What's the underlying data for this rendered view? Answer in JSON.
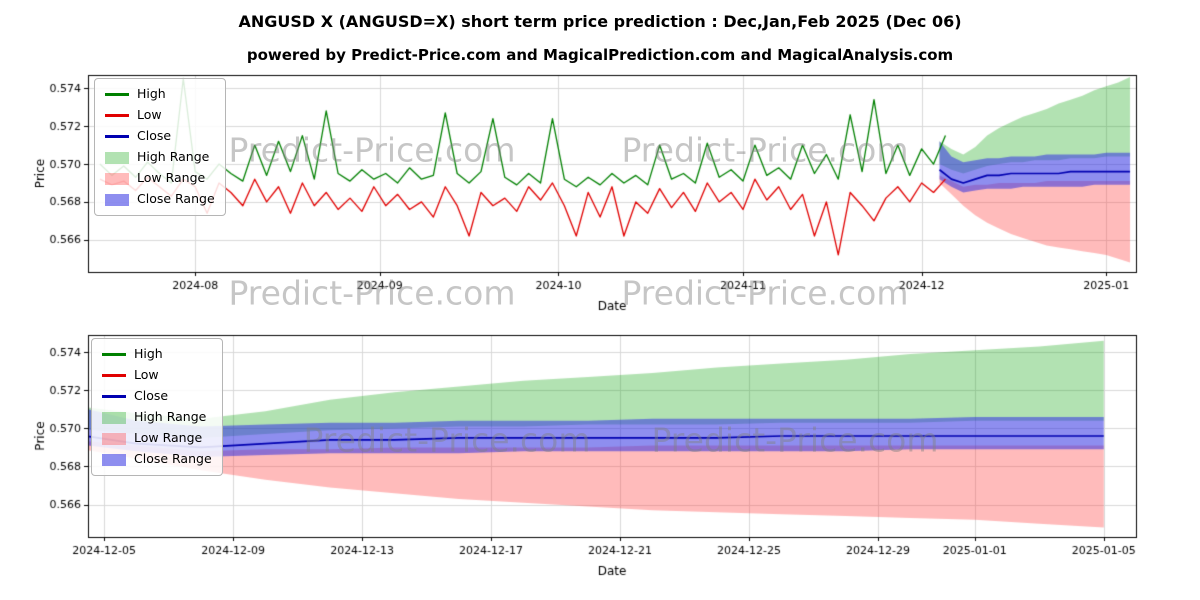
{
  "page": {
    "title": "ANGUSD X (ANGUSD=X) short term price prediction : Dec,Jan,Feb 2025 (Dec 06)",
    "subtitle": "powered by Predict-Price.com and MagicalPrediction.com and MagicalAnalysis.com"
  },
  "watermark": "Predict-Price.com",
  "colors": {
    "high": "#008000",
    "low": "#e00000",
    "close": "#0000b0",
    "high_band": "rgba(0,160,0,0.30)",
    "low_band": "rgba(255,60,60,0.35)",
    "close_band": "rgba(50,50,225,0.55)",
    "grid": "#d8d8d8",
    "frame": "#000000"
  },
  "legend_items": [
    {
      "label": "High",
      "kind": "line",
      "swatch": "#008000"
    },
    {
      "label": "Low",
      "kind": "line",
      "swatch": "#e00000"
    },
    {
      "label": "Close",
      "kind": "line",
      "swatch": "#0000b0"
    },
    {
      "label": "High Range",
      "kind": "band",
      "swatch": "rgba(0,160,0,0.30)"
    },
    {
      "label": "Low Range",
      "kind": "band",
      "swatch": "rgba(255,60,60,0.35)"
    },
    {
      "label": "Close Range",
      "kind": "band",
      "swatch": "rgba(50,50,225,0.55)"
    }
  ],
  "chart_data": [
    {
      "name": "history-with-forecast",
      "type": "line",
      "title": "",
      "xlabel": "Date",
      "ylabel": "Price",
      "grid": true,
      "legend_position": "upper left",
      "legend": [
        "High",
        "Low",
        "Close",
        "High Range",
        "Low Range",
        "Close Range"
      ],
      "xlim": [
        -8,
        168
      ],
      "ylim": [
        0.5643,
        0.5747
      ],
      "xticks": [
        10,
        41,
        71,
        102,
        132,
        163
      ],
      "xtick_labels": [
        "2024-08",
        "2024-09",
        "2024-10",
        "2024-11",
        "2024-12",
        "2025-01"
      ],
      "yticks": [
        0.566,
        0.568,
        0.57,
        0.572,
        0.574
      ],
      "ytick_labels": [
        "0.566",
        "0.568",
        "0.570",
        "0.572",
        "0.574"
      ],
      "prediction_offset": 135,
      "history": {
        "x_start": -6,
        "x_step": 2,
        "high": [
          0.57,
          0.5694,
          0.5699,
          0.5693,
          0.5701,
          0.5695,
          0.569,
          0.5745,
          0.5696,
          0.5692,
          0.57,
          0.5695,
          0.5691,
          0.571,
          0.5694,
          0.5712,
          0.5696,
          0.5715,
          0.5692,
          0.5728,
          0.5695,
          0.5691,
          0.5697,
          0.5692,
          0.5695,
          0.569,
          0.5698,
          0.5692,
          0.5694,
          0.5727,
          0.5695,
          0.569,
          0.5696,
          0.5724,
          0.5693,
          0.5689,
          0.5695,
          0.569,
          0.5724,
          0.5692,
          0.5688,
          0.5693,
          0.5689,
          0.5695,
          0.569,
          0.5694,
          0.5689,
          0.571,
          0.5692,
          0.5695,
          0.569,
          0.5711,
          0.5693,
          0.5697,
          0.5691,
          0.571,
          0.5694,
          0.5698,
          0.5692,
          0.571,
          0.5695,
          0.5705,
          0.5692,
          0.5726,
          0.5696,
          0.5734,
          0.5695,
          0.571,
          0.5694,
          0.5708,
          0.57,
          0.5715
        ],
        "low": [
          0.5692,
          0.5689,
          0.5691,
          0.5686,
          0.5693,
          0.5688,
          0.5683,
          0.5692,
          0.5688,
          0.5674,
          0.569,
          0.5685,
          0.5678,
          0.5692,
          0.568,
          0.5688,
          0.5674,
          0.569,
          0.5678,
          0.5685,
          0.5676,
          0.5682,
          0.5675,
          0.5688,
          0.5678,
          0.5684,
          0.5676,
          0.568,
          0.5672,
          0.5688,
          0.5678,
          0.5662,
          0.5685,
          0.5678,
          0.5682,
          0.5675,
          0.5688,
          0.5681,
          0.569,
          0.5678,
          0.5662,
          0.5685,
          0.5672,
          0.5688,
          0.5662,
          0.568,
          0.5674,
          0.5687,
          0.5677,
          0.5685,
          0.5675,
          0.569,
          0.568,
          0.5685,
          0.5676,
          0.5692,
          0.5681,
          0.5688,
          0.5676,
          0.5684,
          0.5662,
          0.568,
          0.5652,
          0.5685,
          0.5678,
          0.567,
          0.5682,
          0.5688,
          0.568,
          0.569,
          0.5685,
          0.5692
        ]
      }
    },
    {
      "name": "forecast-detail",
      "type": "area",
      "title": "",
      "xlabel": "Date",
      "ylabel": "Price",
      "grid": true,
      "legend_position": "upper left",
      "legend": [
        "High",
        "Low",
        "Close",
        "High Range",
        "Low Range",
        "Close Range"
      ],
      "xlim": [
        0.5,
        33
      ],
      "ylim": [
        0.5643,
        0.5749
      ],
      "xticks": [
        1,
        5,
        9,
        13,
        17,
        21,
        25,
        28,
        32
      ],
      "xtick_labels": [
        "2024-12-05",
        "2024-12-09",
        "2024-12-13",
        "2024-12-17",
        "2024-12-21",
        "2024-12-25",
        "2024-12-29",
        "2025-01-01",
        "2025-01-05"
      ],
      "yticks": [
        0.566,
        0.568,
        0.57,
        0.572,
        0.574
      ],
      "ytick_labels": [
        "0.566",
        "0.568",
        "0.570",
        "0.572",
        "0.574"
      ],
      "prediction_offset": 0,
      "prediction": {
        "x": [
          0,
          2,
          4,
          6,
          8,
          10,
          12,
          14,
          16,
          18,
          20,
          22,
          24,
          26,
          28,
          30,
          32
        ],
        "high_range_upper": [
          0.5712,
          0.5708,
          0.5705,
          0.5709,
          0.5715,
          0.5719,
          0.5722,
          0.5725,
          0.5727,
          0.5729,
          0.5732,
          0.5734,
          0.5736,
          0.5739,
          0.5741,
          0.5743,
          0.5746
        ],
        "high_range_lower": [
          0.57,
          0.5697,
          0.5695,
          0.5697,
          0.5699,
          0.57,
          0.5701,
          0.5701,
          0.5702,
          0.5702,
          0.5702,
          0.5703,
          0.5703,
          0.5703,
          0.5704,
          0.5704,
          0.5704
        ],
        "low_range_upper": [
          0.5694,
          0.5691,
          0.5688,
          0.5689,
          0.5689,
          0.569,
          0.569,
          0.569,
          0.569,
          0.5691,
          0.5691,
          0.5691,
          0.5691,
          0.5691,
          0.5691,
          0.5691,
          0.5691
        ],
        "low_range_lower": [
          0.569,
          0.5684,
          0.5678,
          0.5673,
          0.5669,
          0.5666,
          0.5663,
          0.5661,
          0.5659,
          0.5657,
          0.5656,
          0.5655,
          0.5654,
          0.5653,
          0.5652,
          0.565,
          0.5648
        ],
        "close_range_upper": [
          0.5712,
          0.5704,
          0.5701,
          0.5702,
          0.5703,
          0.5703,
          0.5704,
          0.5704,
          0.5704,
          0.5705,
          0.5705,
          0.5705,
          0.5705,
          0.5705,
          0.5706,
          0.5706,
          0.5706
        ],
        "close_range_lower": [
          0.5692,
          0.5688,
          0.5685,
          0.5686,
          0.5687,
          0.5687,
          0.5687,
          0.5688,
          0.5688,
          0.5688,
          0.5688,
          0.5688,
          0.5688,
          0.5689,
          0.5689,
          0.5689,
          0.5689
        ],
        "close": [
          0.5697,
          0.5692,
          0.569,
          0.5692,
          0.5694,
          0.5694,
          0.5695,
          0.5695,
          0.5695,
          0.5695,
          0.5695,
          0.5696,
          0.5696,
          0.5696,
          0.5696,
          0.5696,
          0.5696
        ]
      }
    }
  ]
}
